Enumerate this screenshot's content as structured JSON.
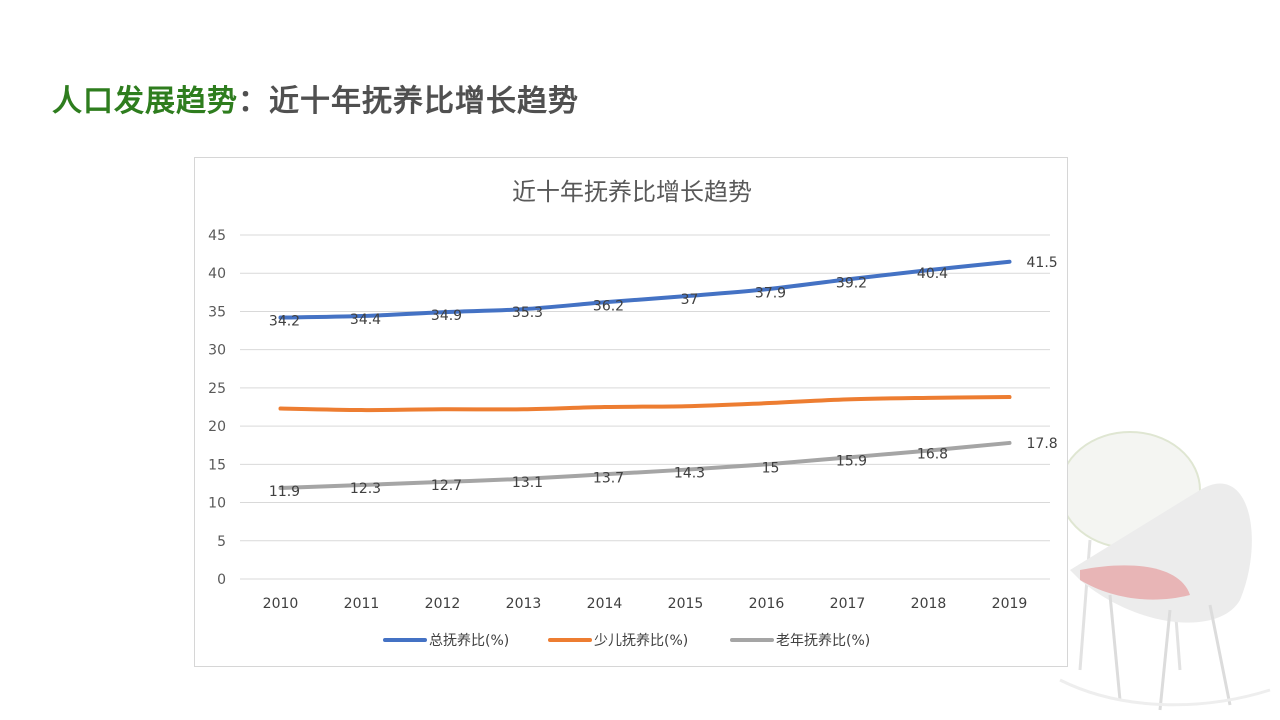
{
  "slide": {
    "title_main": "人口发展趋势",
    "title_sep": "：",
    "title_sub": "近十年抚养比增长趋势"
  },
  "colors": {
    "title_green": "#2e7d1e",
    "title_gray": "#505050",
    "total": "#4472c4",
    "child": "#ed7d31",
    "elderly": "#a5a5a5"
  },
  "chart_data": {
    "type": "line",
    "title": "近十年抚养比增长趋势",
    "x": [
      "2010",
      "2011",
      "2012",
      "2013",
      "2014",
      "2015",
      "2016",
      "2017",
      "2018",
      "2019"
    ],
    "ylim": [
      0,
      45
    ],
    "yticks": [
      0,
      5,
      10,
      15,
      20,
      25,
      30,
      35,
      40,
      45
    ],
    "grid": true,
    "legend": "bottom",
    "series": [
      {
        "name": "总抚养比(%)",
        "color": "#4472c4",
        "values": [
          34.2,
          34.4,
          34.9,
          35.3,
          36.2,
          37,
          37.9,
          39.2,
          40.4,
          41.5
        ],
        "labels": [
          "34.2",
          "34.4",
          "34.9",
          "35.3",
          "36.2",
          "37",
          "37.9",
          "39.2",
          "40.4",
          "41.5"
        ]
      },
      {
        "name": "少儿抚养比(%)",
        "color": "#ed7d31",
        "values": [
          22.3,
          22.1,
          22.2,
          22.2,
          22.5,
          22.6,
          23,
          23.5,
          23.7,
          23.8
        ],
        "labels": []
      },
      {
        "name": "老年抚养比(%)",
        "color": "#a5a5a5",
        "values": [
          11.9,
          12.3,
          12.7,
          13.1,
          13.7,
          14.3,
          15,
          15.9,
          16.8,
          17.8
        ],
        "labels": [
          "11.9",
          "12.3",
          "12.7",
          "13.1",
          "13.7",
          "14.3",
          "15",
          "15.9",
          "16.8",
          "17.8"
        ]
      }
    ]
  }
}
